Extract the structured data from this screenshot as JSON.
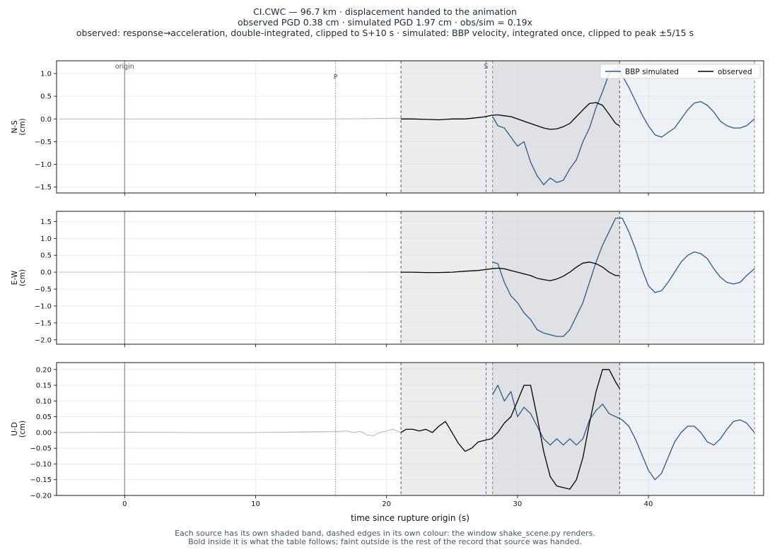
{
  "title_lines": [
    "CI.CWC  —  96.7 km   ·   displacement handed to the animation",
    "observed PGD 0.38 cm   ·   simulated PGD 1.97 cm   ·   obs/sim = 0.19x",
    "observed: response→acceleration, double-integrated, clipped to S+10 s   ·   simulated: BBP velocity, integrated once, clipped to peak ±5/15 s"
  ],
  "footer_lines": [
    "Each source has its own shaded band, dashed edges in its own colour: the window shake_scene.py renders.",
    "Bold inside it is what the table follows;   faint outside is the rest of the record that source was handed."
  ],
  "colors": {
    "simulated": "#2e5a87",
    "observed": "#000000",
    "faint": "#b0b0b0",
    "band_observed": "#ececec",
    "band_simulated": "#eef1f5",
    "band_overlap": "#dfe1e5",
    "edge_observed": "#555555",
    "edge_simulated": "#888888",
    "s_marker": "#5a6fa8",
    "origin_marker": "#8a9ab0",
    "p_marker": "#888888"
  },
  "chart_data": {
    "type": "line",
    "xlabel": "time since rupture origin (s)",
    "xlim": [
      -5.2,
      48.8
    ],
    "xticks": [
      0,
      10,
      20,
      30,
      40
    ],
    "markers": {
      "origin": 0,
      "P": 16.1,
      "S": 27.6
    },
    "marker_labels": {
      "origin": "origin",
      "P": "P",
      "S": "S"
    },
    "observed_window": [
      21.1,
      37.8
    ],
    "simulated_window": [
      28.1,
      48.1
    ],
    "legend": {
      "position": "top-right",
      "entries": [
        "BBP simulated",
        "observed"
      ]
    },
    "grid": true,
    "panels": [
      {
        "ylabel": "N-S",
        "yunit": "(cm)",
        "ylim": [
          -1.63,
          1.28
        ],
        "yticks": [
          -1.5,
          -1.0,
          -0.5,
          0.0,
          0.5,
          1.0
        ],
        "ytick_labels": [
          "−1.5",
          "−1.0",
          "−0.5",
          "0.0",
          "0.5",
          "1.0"
        ],
        "observed_faint": [
          [
            -5,
            0
          ],
          [
            0,
            0
          ],
          [
            5,
            0
          ],
          [
            10,
            0
          ],
          [
            15,
            0
          ],
          [
            17,
            0.002
          ],
          [
            18,
            0.005
          ],
          [
            19,
            0.008
          ],
          [
            19.5,
            0.015
          ],
          [
            20,
            0.01
          ],
          [
            20.5,
            0.02
          ],
          [
            21.1,
            0.01
          ]
        ],
        "observed": [
          [
            21.1,
            0.0
          ],
          [
            22,
            0.0
          ],
          [
            23,
            -0.01
          ],
          [
            24,
            -0.02
          ],
          [
            25,
            0.0
          ],
          [
            26,
            0.0
          ],
          [
            27,
            0.03
          ],
          [
            27.6,
            0.05
          ],
          [
            28,
            0.08
          ],
          [
            28.5,
            0.09
          ],
          [
            29,
            0.07
          ],
          [
            29.5,
            0.05
          ],
          [
            30,
            0.0
          ],
          [
            30.5,
            -0.05
          ],
          [
            31,
            -0.1
          ],
          [
            31.5,
            -0.15
          ],
          [
            32,
            -0.2
          ],
          [
            32.5,
            -0.23
          ],
          [
            33,
            -0.22
          ],
          [
            33.5,
            -0.17
          ],
          [
            34,
            -0.1
          ],
          [
            34.5,
            0.05
          ],
          [
            35,
            0.2
          ],
          [
            35.5,
            0.34
          ],
          [
            36,
            0.36
          ],
          [
            36.5,
            0.3
          ],
          [
            37,
            0.1
          ],
          [
            37.5,
            -0.1
          ],
          [
            37.8,
            -0.15
          ]
        ],
        "simulated": [
          [
            28.1,
            0.05
          ],
          [
            28.5,
            -0.15
          ],
          [
            29,
            -0.2
          ],
          [
            29.5,
            -0.4
          ],
          [
            30,
            -0.6
          ],
          [
            30.5,
            -0.5
          ],
          [
            31,
            -0.95
          ],
          [
            31.5,
            -1.25
          ],
          [
            32,
            -1.45
          ],
          [
            32.5,
            -1.3
          ],
          [
            33,
            -1.4
          ],
          [
            33.5,
            -1.35
          ],
          [
            34,
            -1.1
          ],
          [
            34.5,
            -0.9
          ],
          [
            35,
            -0.5
          ],
          [
            35.5,
            -0.2
          ],
          [
            36,
            0.25
          ],
          [
            36.5,
            0.6
          ],
          [
            37,
            1.0
          ],
          [
            37.5,
            1.1
          ],
          [
            38,
            0.95
          ],
          [
            38.5,
            0.7
          ],
          [
            39,
            0.4
          ],
          [
            39.5,
            0.1
          ],
          [
            40,
            -0.15
          ],
          [
            40.5,
            -0.35
          ],
          [
            41,
            -0.4
          ],
          [
            41.5,
            -0.3
          ],
          [
            42,
            -0.2
          ],
          [
            42.5,
            0.0
          ],
          [
            43,
            0.2
          ],
          [
            43.5,
            0.35
          ],
          [
            44,
            0.38
          ],
          [
            44.5,
            0.3
          ],
          [
            45,
            0.15
          ],
          [
            45.5,
            -0.05
          ],
          [
            46,
            -0.15
          ],
          [
            46.5,
            -0.2
          ],
          [
            47,
            -0.2
          ],
          [
            47.5,
            -0.15
          ],
          [
            48.1,
            0.0
          ]
        ]
      },
      {
        "ylabel": "E-W",
        "yunit": "(cm)",
        "ylim": [
          -2.13,
          1.8
        ],
        "yticks": [
          -2.0,
          -1.5,
          -1.0,
          -0.5,
          0.0,
          0.5,
          1.0,
          1.5
        ],
        "ytick_labels": [
          "−2.0",
          "−1.5",
          "−1.0",
          "−0.5",
          "0.0",
          "0.5",
          "1.0",
          "1.5"
        ],
        "observed_faint": [
          [
            -5,
            0
          ],
          [
            0,
            0
          ],
          [
            5,
            0
          ],
          [
            10,
            0
          ],
          [
            15,
            0
          ],
          [
            18,
            0.0
          ],
          [
            20,
            0.003
          ],
          [
            21.1,
            0.005
          ]
        ],
        "observed": [
          [
            21.1,
            0.0
          ],
          [
            22,
            0.0
          ],
          [
            23,
            -0.01
          ],
          [
            24,
            -0.01
          ],
          [
            25,
            0.0
          ],
          [
            26,
            0.03
          ],
          [
            27,
            0.05
          ],
          [
            28,
            0.1
          ],
          [
            28.5,
            0.12
          ],
          [
            29,
            0.1
          ],
          [
            29.5,
            0.05
          ],
          [
            30,
            0.0
          ],
          [
            30.5,
            -0.05
          ],
          [
            31,
            -0.1
          ],
          [
            31.5,
            -0.18
          ],
          [
            32,
            -0.22
          ],
          [
            32.5,
            -0.25
          ],
          [
            33,
            -0.2
          ],
          [
            33.5,
            -0.12
          ],
          [
            34,
            0.0
          ],
          [
            34.5,
            0.15
          ],
          [
            35,
            0.27
          ],
          [
            35.5,
            0.3
          ],
          [
            36,
            0.25
          ],
          [
            36.5,
            0.15
          ],
          [
            37,
            0.0
          ],
          [
            37.5,
            -0.1
          ],
          [
            37.8,
            -0.1
          ]
        ],
        "simulated": [
          [
            28.1,
            0.3
          ],
          [
            28.5,
            0.25
          ],
          [
            29,
            -0.3
          ],
          [
            29.5,
            -0.7
          ],
          [
            30,
            -0.9
          ],
          [
            30.5,
            -1.2
          ],
          [
            31,
            -1.4
          ],
          [
            31.5,
            -1.7
          ],
          [
            32,
            -1.8
          ],
          [
            32.5,
            -1.85
          ],
          [
            33,
            -1.9
          ],
          [
            33.5,
            -1.9
          ],
          [
            34,
            -1.7
          ],
          [
            34.5,
            -1.3
          ],
          [
            35,
            -0.9
          ],
          [
            35.5,
            -0.3
          ],
          [
            36,
            0.3
          ],
          [
            36.5,
            0.8
          ],
          [
            37,
            1.2
          ],
          [
            37.5,
            1.6
          ],
          [
            38,
            1.6
          ],
          [
            38.5,
            1.2
          ],
          [
            39,
            0.7
          ],
          [
            39.5,
            0.1
          ],
          [
            40,
            -0.4
          ],
          [
            40.5,
            -0.6
          ],
          [
            41,
            -0.55
          ],
          [
            41.5,
            -0.3
          ],
          [
            42,
            0.0
          ],
          [
            42.5,
            0.3
          ],
          [
            43,
            0.5
          ],
          [
            43.5,
            0.6
          ],
          [
            44,
            0.55
          ],
          [
            44.5,
            0.4
          ],
          [
            45,
            0.1
          ],
          [
            45.5,
            -0.15
          ],
          [
            46,
            -0.3
          ],
          [
            46.5,
            -0.35
          ],
          [
            47,
            -0.3
          ],
          [
            47.5,
            -0.1
          ],
          [
            48.1,
            0.1
          ]
        ]
      },
      {
        "ylabel": "U-D",
        "yunit": "(cm)",
        "ylim": [
          -0.2,
          0.222
        ],
        "yticks": [
          -0.2,
          -0.15,
          -0.1,
          -0.05,
          0.0,
          0.05,
          0.1,
          0.15,
          0.2
        ],
        "ytick_labels": [
          "−0.20",
          "−0.15",
          "−0.10",
          "−0.05",
          "0.00",
          "0.05",
          "0.10",
          "0.15",
          "0.20"
        ],
        "observed_faint": [
          [
            -5,
            0
          ],
          [
            0,
            0.001
          ],
          [
            5,
            0.0
          ],
          [
            10,
            0.0
          ],
          [
            14,
            0.002
          ],
          [
            16,
            0.003
          ],
          [
            17,
            0.005
          ],
          [
            17.5,
            0.0
          ],
          [
            18,
            0.004
          ],
          [
            18.5,
            -0.008
          ],
          [
            19,
            -0.01
          ],
          [
            19.5,
            0.0
          ],
          [
            20,
            0.005
          ],
          [
            20.5,
            0.01
          ],
          [
            21.1,
            0.0
          ]
        ],
        "observed": [
          [
            21.1,
            0.0
          ],
          [
            21.5,
            0.01
          ],
          [
            22,
            0.01
          ],
          [
            22.5,
            0.005
          ],
          [
            23,
            0.01
          ],
          [
            23.5,
            0.0
          ],
          [
            24,
            0.02
          ],
          [
            24.5,
            0.035
          ],
          [
            25,
            0.0
          ],
          [
            25.5,
            -0.035
          ],
          [
            26,
            -0.06
          ],
          [
            26.5,
            -0.05
          ],
          [
            27,
            -0.03
          ],
          [
            27.5,
            -0.025
          ],
          [
            28,
            -0.02
          ],
          [
            28.5,
            0.0
          ],
          [
            29,
            0.03
          ],
          [
            29.5,
            0.05
          ],
          [
            30,
            0.1
          ],
          [
            30.5,
            0.15
          ],
          [
            31,
            0.15
          ],
          [
            31.5,
            0.05
          ],
          [
            32,
            -0.06
          ],
          [
            32.5,
            -0.14
          ],
          [
            33,
            -0.17
          ],
          [
            33.5,
            -0.175
          ],
          [
            34,
            -0.18
          ],
          [
            34.5,
            -0.15
          ],
          [
            35,
            -0.08
          ],
          [
            35.5,
            0.03
          ],
          [
            36,
            0.13
          ],
          [
            36.5,
            0.2
          ],
          [
            37,
            0.2
          ],
          [
            37.5,
            0.16
          ],
          [
            37.8,
            0.14
          ]
        ],
        "simulated": [
          [
            28.1,
            0.12
          ],
          [
            28.5,
            0.15
          ],
          [
            29,
            0.1
          ],
          [
            29.5,
            0.13
          ],
          [
            30,
            0.05
          ],
          [
            30.5,
            0.08
          ],
          [
            31,
            0.06
          ],
          [
            31.5,
            0.02
          ],
          [
            32,
            -0.02
          ],
          [
            32.5,
            -0.04
          ],
          [
            33,
            -0.02
          ],
          [
            33.5,
            -0.04
          ],
          [
            34,
            -0.02
          ],
          [
            34.5,
            -0.04
          ],
          [
            35,
            -0.02
          ],
          [
            35.5,
            0.04
          ],
          [
            36,
            0.07
          ],
          [
            36.5,
            0.09
          ],
          [
            37,
            0.06
          ],
          [
            37.5,
            0.05
          ],
          [
            38,
            0.04
          ],
          [
            38.5,
            0.02
          ],
          [
            39,
            -0.02
          ],
          [
            39.5,
            -0.07
          ],
          [
            40,
            -0.12
          ],
          [
            40.5,
            -0.15
          ],
          [
            41,
            -0.13
          ],
          [
            41.5,
            -0.08
          ],
          [
            42,
            -0.03
          ],
          [
            42.5,
            0.0
          ],
          [
            43,
            0.02
          ],
          [
            43.5,
            0.02
          ],
          [
            44,
            0.0
          ],
          [
            44.5,
            -0.03
          ],
          [
            45,
            -0.04
          ],
          [
            45.5,
            -0.02
          ],
          [
            46,
            0.01
          ],
          [
            46.5,
            0.035
          ],
          [
            47,
            0.04
          ],
          [
            47.5,
            0.03
          ],
          [
            48.1,
            0.0
          ]
        ]
      }
    ]
  }
}
